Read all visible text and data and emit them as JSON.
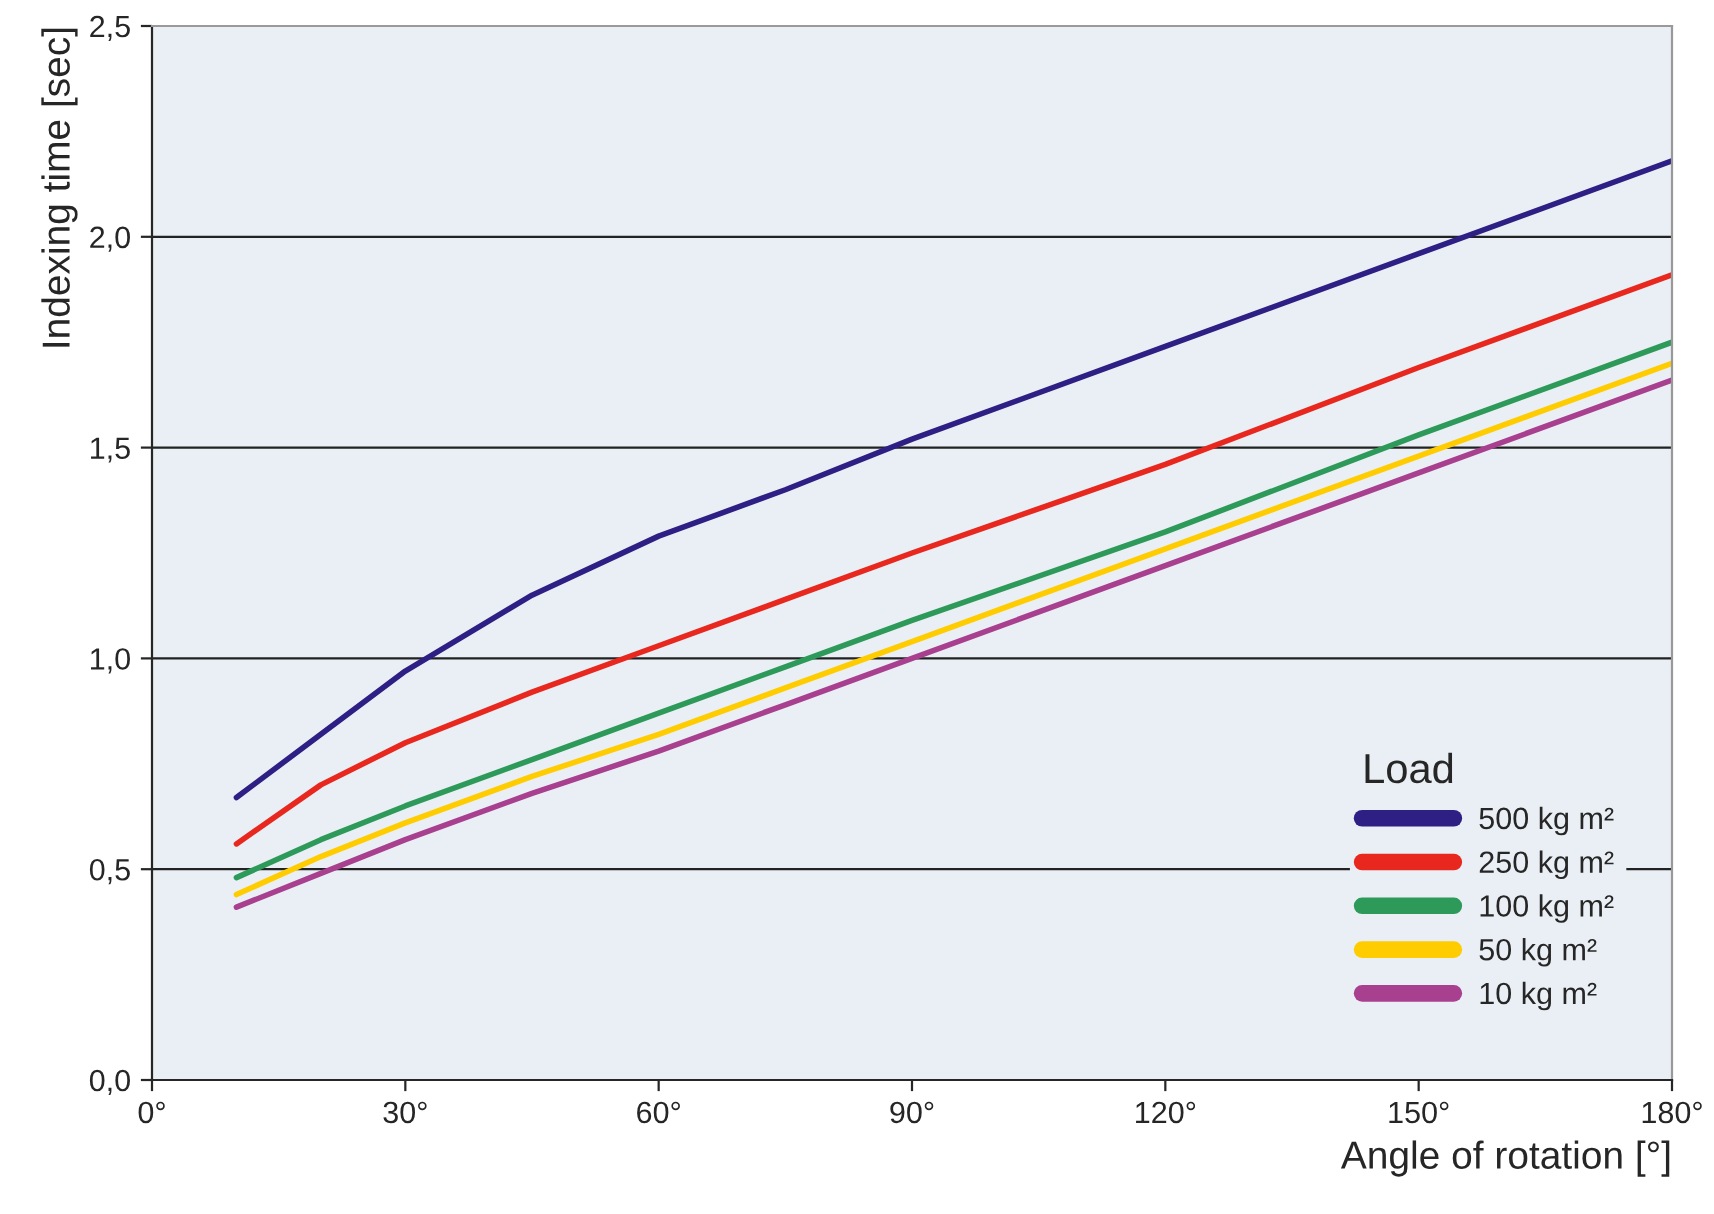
{
  "chart_data": {
    "type": "line",
    "xlabel": "Angle of rotation [°]",
    "ylabel": "Indexing time [sec]",
    "legend_title": "Load",
    "x": [
      10,
      20,
      30,
      45,
      60,
      75,
      90,
      120,
      150,
      180
    ],
    "series": [
      {
        "name": "500 kg m²",
        "color": "#2e1f85",
        "values": [
          0.67,
          0.82,
          0.97,
          1.15,
          1.29,
          1.4,
          1.52,
          1.74,
          1.96,
          2.18
        ]
      },
      {
        "name": "250 kg m²",
        "color": "#e8281e",
        "values": [
          0.56,
          0.7,
          0.8,
          0.92,
          1.03,
          1.14,
          1.25,
          1.46,
          1.69,
          1.91
        ]
      },
      {
        "name": "100 kg m²",
        "color": "#2e9a5a",
        "values": [
          0.48,
          0.57,
          0.65,
          0.76,
          0.87,
          0.98,
          1.09,
          1.3,
          1.53,
          1.75
        ]
      },
      {
        "name": "50 kg m²",
        "color": "#ffcc00",
        "values": [
          0.44,
          0.53,
          0.61,
          0.72,
          0.82,
          0.93,
          1.04,
          1.26,
          1.48,
          1.7
        ]
      },
      {
        "name": "10 kg m²",
        "color": "#a8408f",
        "values": [
          0.41,
          0.49,
          0.57,
          0.68,
          0.78,
          0.89,
          1.0,
          1.22,
          1.44,
          1.66
        ]
      }
    ],
    "xlim": [
      0,
      180
    ],
    "xticks": [
      {
        "value": 0,
        "label": "0°"
      },
      {
        "value": 30,
        "label": "30°"
      },
      {
        "value": 60,
        "label": "60°"
      },
      {
        "value": 90,
        "label": "90°"
      },
      {
        "value": 120,
        "label": "120°"
      },
      {
        "value": 150,
        "label": "150°"
      },
      {
        "value": 180,
        "label": "180°"
      }
    ],
    "ylim": [
      0,
      2.5
    ],
    "yticks": [
      {
        "value": 0,
        "label": "0,0"
      },
      {
        "value": 0.5,
        "label": "0,5"
      },
      {
        "value": 1.0,
        "label": "1,0"
      },
      {
        "value": 1.5,
        "label": "1,5"
      },
      {
        "value": 2.0,
        "label": "2,0"
      },
      {
        "value": 2.5,
        "label": "2,5"
      }
    ],
    "grid": "y",
    "legend": "bottom right",
    "marker": "none",
    "line_style": "solid"
  }
}
